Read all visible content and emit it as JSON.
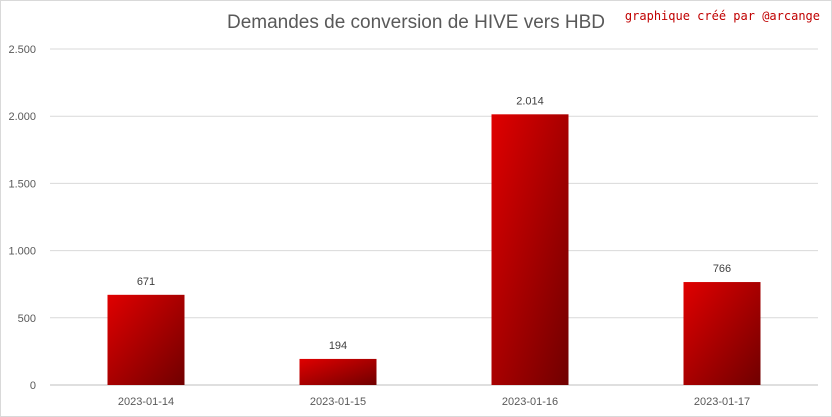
{
  "chart": {
    "title": "Demandes de conversion de HIVE vers HBD",
    "credit": "graphique créé par @arcange"
  },
  "chart_data": {
    "type": "bar",
    "title": "Demandes de conversion de HIVE vers HBD",
    "xlabel": "",
    "ylabel": "",
    "categories": [
      "2023-01-14",
      "2023-01-15",
      "2023-01-16",
      "2023-01-17"
    ],
    "values": [
      671,
      194,
      2014,
      766
    ],
    "value_labels": [
      "671",
      "194",
      "2.014",
      "766"
    ],
    "ylim": [
      0,
      2500
    ],
    "yticks": [
      0,
      500,
      1000,
      1500,
      2000,
      2500
    ],
    "ytick_labels": [
      "0",
      "500",
      "1.000",
      "1.500",
      "2.000",
      "2.500"
    ],
    "grid": true,
    "bar_colors": [
      "#e00000",
      "#700000"
    ]
  }
}
